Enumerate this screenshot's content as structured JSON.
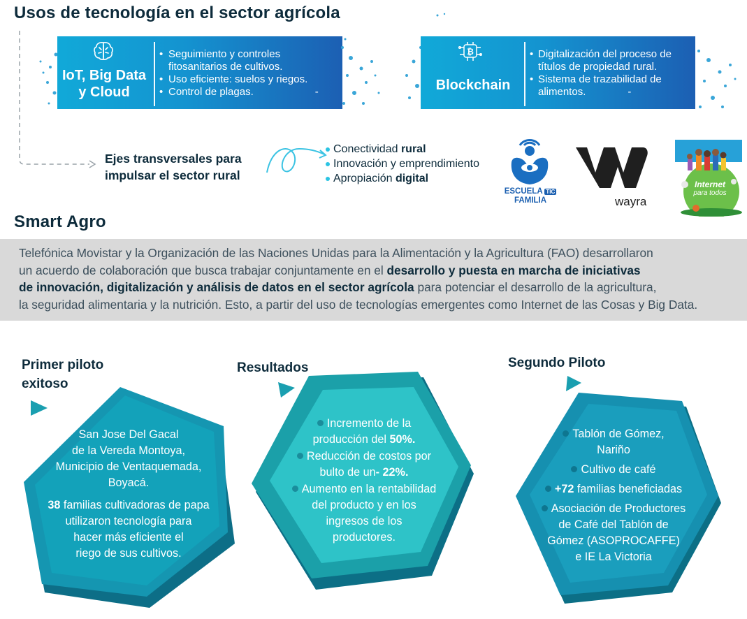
{
  "page": {
    "title": "Usos de tecnología en el sector agrícola",
    "smart_agro_title": "Smart Agro"
  },
  "colors": {
    "dark_text": "#0d2b3b",
    "banner_start": "#11a9d8",
    "banner_end": "#1c5fb3",
    "teal": "#1aa7b3",
    "hex_dark": "#0c6f86",
    "hex_mid": "#1596b1",
    "hex_light": "#2dc4c9",
    "gray_band": "#d9d9d9"
  },
  "tech": {
    "iot": {
      "icon": "brain-icon",
      "title_line1": "IoT, Big Data",
      "title_line2": "y Cloud",
      "bullets": [
        "Seguimiento y controles fitosanitarios de cultivos.",
        "Uso eficiente: suelos y riegos.",
        "Control de plagas."
      ],
      "bullet1_line1": "Seguimiento y controles",
      "bullet1_line2": "fitosanitarios de cultivos.",
      "bullet2": "Uso eficiente: suelos y riegos.",
      "bullet3": "Control de plagas.",
      "dash": "-"
    },
    "blockchain": {
      "icon": "bitcoin-circuit-icon",
      "title": "Blockchain",
      "bullet1_line1": "Digitalización del proceso de",
      "bullet1_line2": "títulos de propiedad rural.",
      "bullet2_line1": "Sistema de trazabilidad  de",
      "bullet2_line2": "alimentos.",
      "dash": "-"
    }
  },
  "transversal": {
    "title_line1": "Ejes transversales para",
    "title_line2": "impulsar el sector rural",
    "item1_normal": "Conectividad ",
    "item1_bold": "rural",
    "item2": "Innovación y emprendimiento",
    "item3_normal": "Apropiación ",
    "item3_bold": "digital",
    "logos": {
      "escuela_line1": "ESCUELA",
      "escuela_tic": "TIC",
      "escuela_line2": "FAMILIA",
      "wayra": "wayra",
      "internet_line1": "Internet",
      "internet_line2": "para todos"
    }
  },
  "smart_agro": {
    "line1": "Telefónica Movistar y la Organización de las Naciones Unidas para la Alimentación y la Agricultura (FAO)  desarrollaron",
    "line2_normal": "un acuerdo de colaboración que busca trabajar conjuntamente en el ",
    "line2_bold": "desarrollo y puesta en marcha de iniciativas",
    "line3_bold": "de innovación, digitalización y análisis de datos en el sector agrícola",
    "line3_normal": " para potenciar el desarrollo de la agricultura,",
    "line4": "la seguridad alimentaria y la nutrición. Esto, a partir del uso de tecnologías emergentes como Internet de las Cosas y Big Data."
  },
  "pilot1": {
    "title_line1": "Primer piloto",
    "title_line2": "exitoso",
    "loc_line1": "San Jose Del Gacal",
    "loc_line2": "de la Vereda Montoya,",
    "loc_line3": "Municipio de Ventaquemada,",
    "loc_line4": "Boyacá.",
    "families_num": "38",
    "families_text1": " familias cultivadoras de papa",
    "families_text2": "utilizaron tecnología para",
    "families_text3": "hacer más eficiente el",
    "families_text4": "riego de sus cultivos."
  },
  "results": {
    "title": "Resultados",
    "r1_line1": "Incremento de la",
    "r1_line2_normal": "producción del ",
    "r1_line2_bold": "50%.",
    "r2_line1": "Reducción de costos por",
    "r2_line2_normal": "bulto de un",
    "r2_line2_bold": "- 22%.",
    "r3_line1": "Aumento en la rentabilidad",
    "r3_line2": "del producto y en los",
    "r3_line3": "ingresos de los",
    "r3_line4": "productores."
  },
  "pilot2": {
    "title": "Segundo Piloto",
    "i1_line1": "Tablón de Gómez,",
    "i1_line2": "Nariño",
    "i2": "Cultivo de café",
    "i3_bold": "+72",
    "i3_normal": " familias beneficiadas",
    "i4_line1": "Asociación de Productores",
    "i4_line2": "de Café del Tablón de",
    "i4_line3": "Gómez (ASOPROCAFFE)",
    "i4_line4": "e IE  La Victoria"
  }
}
